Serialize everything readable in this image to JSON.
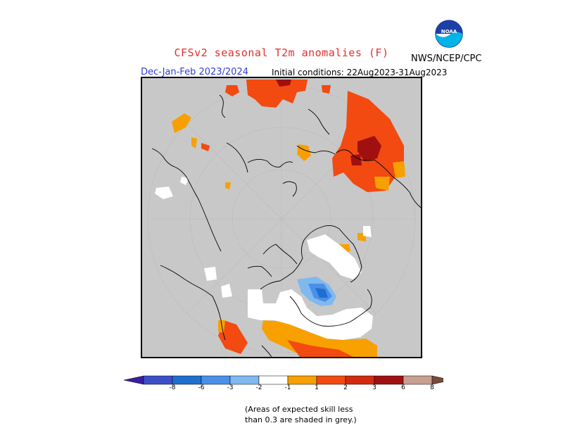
{
  "header": {
    "title": "CFSv2 seasonal T2m anomalies (F)",
    "org": "NWS/NCEP/CPC",
    "season": "Dec-Jan-Feb 2023/2024",
    "initial_conditions": "Initial conditions: 22Aug2023-31Aug2023"
  },
  "logo": {
    "text": "NOAA",
    "icon": "noaa-logo"
  },
  "legend": {
    "labels": [
      "-8",
      "-6",
      "-3",
      "-2",
      "-1",
      "1",
      "2",
      "3",
      "6",
      "8"
    ],
    "colors": [
      "#3a1fa0",
      "#3c4fc8",
      "#1f6fd0",
      "#4a90e8",
      "#80b8f0",
      "#ffffff",
      "#f7a000",
      "#f24a10",
      "#d42a10",
      "#a01010",
      "#c8a090",
      "#7a4a3a"
    ]
  },
  "note": {
    "line1": "(Areas of expected skill less",
    "line2": "than 0.3 are shaded in grey.)"
  }
}
